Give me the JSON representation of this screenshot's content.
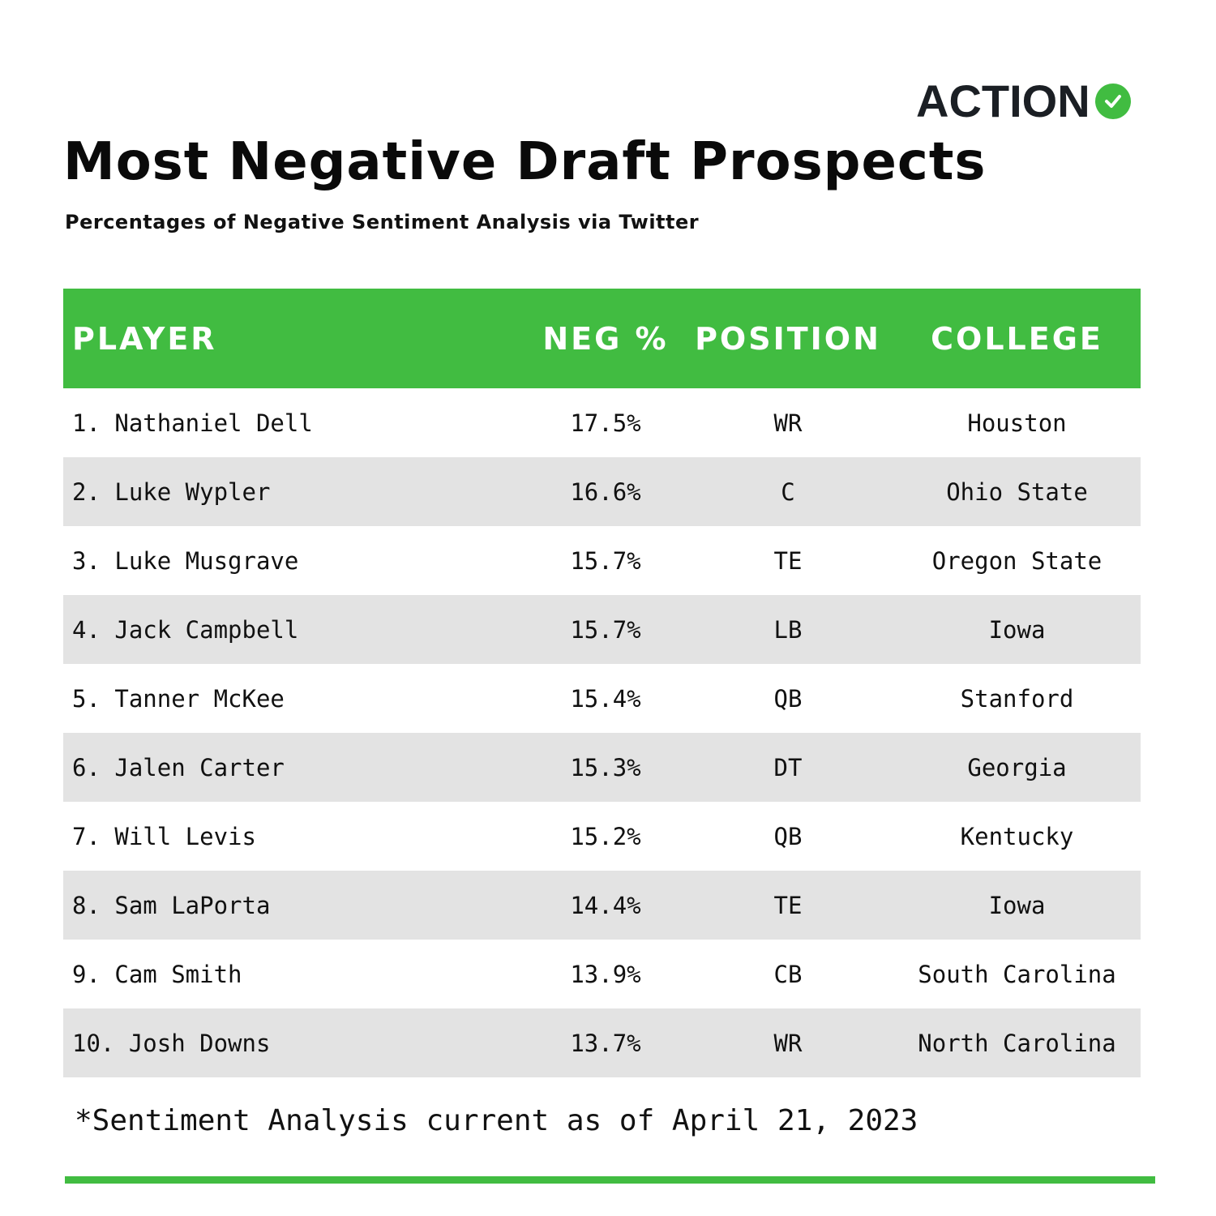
{
  "brand": {
    "logo_text": "ACTION",
    "check_icon": "check-circle-icon",
    "accent_color": "#41bc41"
  },
  "title": "Most Negative Draft Prospects",
  "subtitle": "Percentages of Negative Sentiment Analysis via Twitter",
  "table": {
    "header_color": "#41bc41",
    "alt_row_color": "#e3e3e3",
    "columns": [
      "PLAYER",
      "NEG %",
      "POSITION",
      "COLLEGE"
    ],
    "rows": [
      {
        "player": "1. Nathaniel Dell",
        "neg": "17.5%",
        "position": "WR",
        "college": "Houston"
      },
      {
        "player": "2. Luke Wypler",
        "neg": "16.6%",
        "position": "C",
        "college": "Ohio State"
      },
      {
        "player": "3. Luke Musgrave",
        "neg": "15.7%",
        "position": "TE",
        "college": "Oregon State"
      },
      {
        "player": "4. Jack Campbell",
        "neg": "15.7%",
        "position": "LB",
        "college": "Iowa"
      },
      {
        "player": "5. Tanner McKee",
        "neg": "15.4%",
        "position": "QB",
        "college": "Stanford"
      },
      {
        "player": "6. Jalen Carter",
        "neg": "15.3%",
        "position": "DT",
        "college": "Georgia"
      },
      {
        "player": "7. Will Levis",
        "neg": "15.2%",
        "position": "QB",
        "college": "Kentucky"
      },
      {
        "player": "8. Sam LaPorta",
        "neg": "14.4%",
        "position": "TE",
        "college": "Iowa"
      },
      {
        "player": "9. Cam Smith",
        "neg": "13.9%",
        "position": "CB",
        "college": "South Carolina"
      },
      {
        "player": "10. Josh Downs",
        "neg": "13.7%",
        "position": "WR",
        "college": "North Carolina"
      }
    ]
  },
  "footnote": "*Sentiment Analysis current as of April 21, 2023"
}
